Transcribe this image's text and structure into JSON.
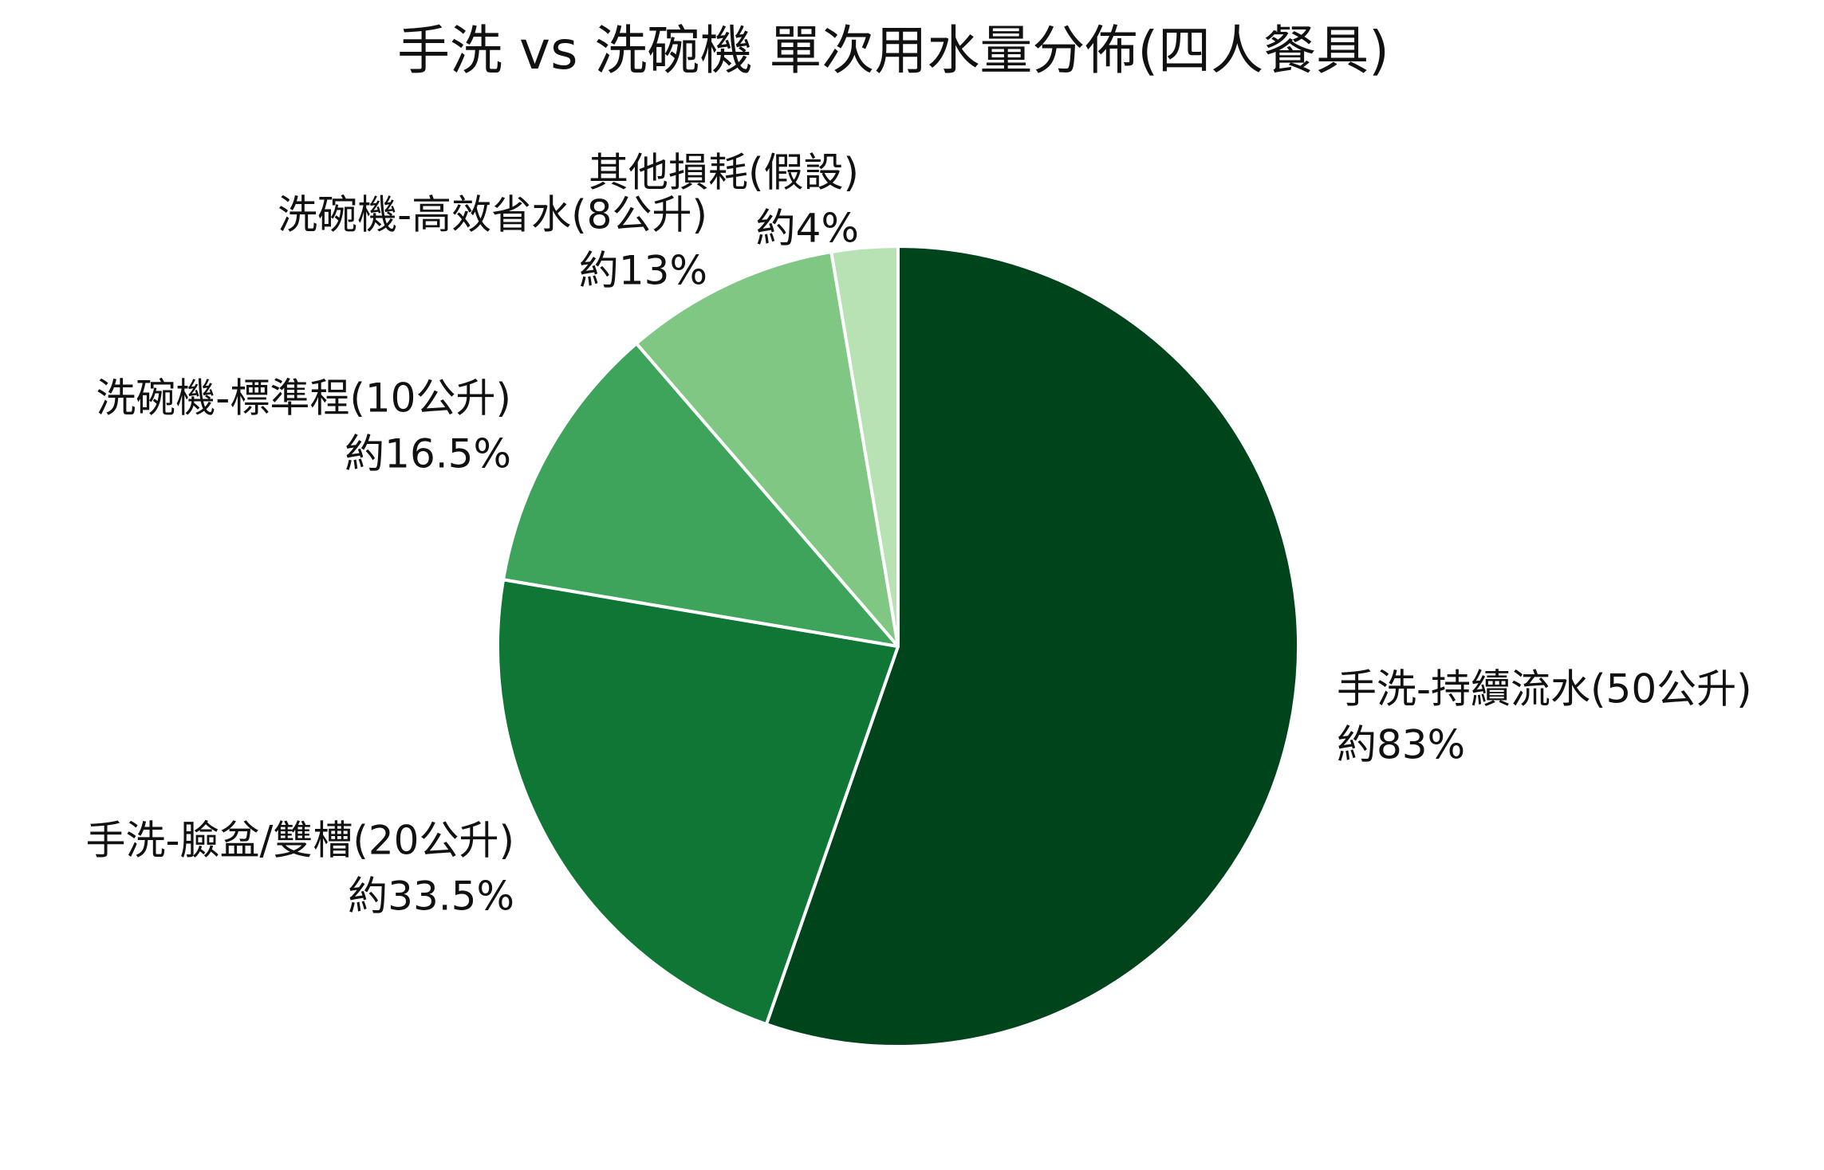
{
  "chart_data": {
    "type": "pie",
    "title": "手洗 vs 洗碗機 單次用水量分佈(四人餐具)",
    "categories": [
      "手洗-持續流水(50公升)",
      "手洗-臉盆/雙槽(20公升)",
      "洗碗機-標準程(10公升)",
      "洗碗機-高效省水(8公升)",
      "其他損耗(假設)"
    ],
    "values": [
      83,
      33.5,
      16.5,
      13,
      4
    ],
    "value_labels": [
      "約83%",
      "約33.5%",
      "約16.5%",
      "約13%",
      "約4%"
    ],
    "colors": [
      "#00441b",
      "#0f7636",
      "#3fa45b",
      "#80c783",
      "#b8e2b4"
    ]
  }
}
